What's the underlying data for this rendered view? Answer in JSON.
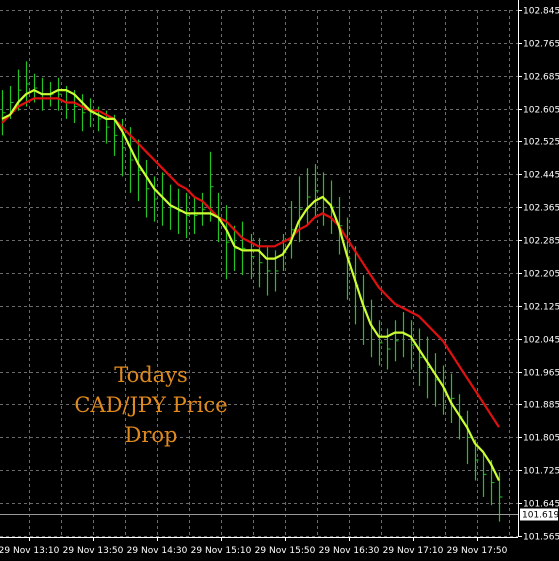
{
  "chart_data": {
    "type": "line",
    "title": "",
    "xlabel": "",
    "ylabel": "",
    "ylim": [
      101.565,
      102.885
    ],
    "y_ticks": [
      "102.845",
      "102.765",
      "102.685",
      "102.605",
      "102.525",
      "102.445",
      "102.365",
      "102.285",
      "102.205",
      "102.125",
      "102.045",
      "101.965",
      "101.885",
      "101.805",
      "101.725",
      "101.645",
      "101.565"
    ],
    "x_ticks": [
      "29 Nov 13:10",
      "29 Nov 13:50",
      "29 Nov 14:30",
      "29 Nov 15:10",
      "29 Nov 15:50",
      "29 Nov 16:30",
      "29 Nov 17:10",
      "29 Nov 17:50"
    ],
    "current_price": "101.619",
    "grid": true,
    "annotation": [
      "Todays",
      "CAD/JPY Price",
      "Drop"
    ],
    "colors": {
      "background": "#000000",
      "grid": "#6b6b6b",
      "bars": "#22c422",
      "fast_ma": "#ccff33",
      "slow_ma": "#e01010",
      "annotation": "#e08a1e",
      "axis_text": "#ffffff"
    },
    "series": [
      {
        "kind": "fast_ma",
        "values": [
          102.58,
          102.59,
          102.62,
          102.64,
          102.65,
          102.64,
          102.64,
          102.65,
          102.65,
          102.64,
          102.62,
          102.6,
          102.59,
          102.58,
          102.58,
          102.55,
          102.51,
          102.47,
          102.44,
          102.41,
          102.39,
          102.37,
          102.36,
          102.35,
          102.35,
          102.35,
          102.35,
          102.34,
          102.31,
          102.27,
          102.26,
          102.26,
          102.26,
          102.24,
          102.24,
          102.25,
          102.28,
          102.33,
          102.36,
          102.38,
          102.39,
          102.37,
          102.32,
          102.25,
          102.19,
          102.13,
          102.08,
          102.05,
          102.05,
          102.06,
          102.06,
          102.05,
          102.02,
          101.99,
          101.96,
          101.93,
          101.89,
          101.86,
          101.83,
          101.79,
          101.77,
          101.74,
          101.7
        ]
      },
      {
        "kind": "slow_ma",
        "values": [
          102.57,
          102.59,
          102.61,
          102.62,
          102.63,
          102.63,
          102.63,
          102.63,
          102.62,
          102.62,
          102.61,
          102.6,
          102.6,
          102.59,
          102.58,
          102.56,
          102.54,
          102.52,
          102.5,
          102.48,
          102.46,
          102.44,
          102.42,
          102.41,
          102.39,
          102.38,
          102.36,
          102.34,
          102.33,
          102.31,
          102.29,
          102.28,
          102.27,
          102.27,
          102.27,
          102.28,
          102.29,
          102.31,
          102.32,
          102.34,
          102.35,
          102.34,
          102.32,
          102.29,
          102.26,
          102.23,
          102.2,
          102.17,
          102.15,
          102.13,
          102.12,
          102.11,
          102.1,
          102.08,
          102.06,
          102.04,
          102.01,
          101.98,
          101.95,
          101.92,
          101.89,
          101.86,
          101.83
        ]
      }
    ],
    "bars": [
      [
        102.54,
        102.65
      ],
      [
        102.58,
        102.66
      ],
      [
        102.6,
        102.7
      ],
      [
        102.61,
        102.72
      ],
      [
        102.62,
        102.69
      ],
      [
        102.6,
        102.68
      ],
      [
        102.61,
        102.67
      ],
      [
        102.6,
        102.68
      ],
      [
        102.58,
        102.66
      ],
      [
        102.57,
        102.65
      ],
      [
        102.55,
        102.64
      ],
      [
        102.56,
        102.63
      ],
      [
        102.55,
        102.61
      ],
      [
        102.52,
        102.6
      ],
      [
        102.49,
        102.59
      ],
      [
        102.44,
        102.58
      ],
      [
        102.4,
        102.56
      ],
      [
        102.38,
        102.53
      ],
      [
        102.34,
        102.48
      ],
      [
        102.33,
        102.44
      ],
      [
        102.32,
        102.45
      ],
      [
        102.31,
        102.42
      ],
      [
        102.3,
        102.41
      ],
      [
        102.29,
        102.4
      ],
      [
        102.3,
        102.39
      ],
      [
        102.32,
        102.4
      ],
      [
        102.33,
        102.5
      ],
      [
        102.28,
        102.4
      ],
      [
        102.19,
        102.37
      ],
      [
        102.21,
        102.32
      ],
      [
        102.2,
        102.33
      ],
      [
        102.19,
        102.3
      ],
      [
        102.17,
        102.29
      ],
      [
        102.15,
        102.27
      ],
      [
        102.16,
        102.26
      ],
      [
        102.21,
        102.3
      ],
      [
        102.24,
        102.38
      ],
      [
        102.28,
        102.44
      ],
      [
        102.32,
        102.46
      ],
      [
        102.34,
        102.47
      ],
      [
        102.32,
        102.45
      ],
      [
        102.3,
        102.43
      ],
      [
        102.25,
        102.39
      ],
      [
        102.14,
        102.34
      ],
      [
        102.08,
        102.27
      ],
      [
        102.03,
        102.2
      ],
      [
        102.0,
        102.14
      ],
      [
        101.98,
        102.09
      ],
      [
        101.97,
        102.07
      ],
      [
        101.99,
        102.09
      ],
      [
        102.0,
        102.11
      ],
      [
        101.97,
        102.09
      ],
      [
        101.93,
        102.07
      ],
      [
        101.9,
        102.05
      ],
      [
        101.88,
        102.01
      ],
      [
        101.86,
        101.98
      ],
      [
        101.84,
        101.96
      ],
      [
        101.8,
        101.91
      ],
      [
        101.74,
        101.87
      ],
      [
        101.7,
        101.8
      ],
      [
        101.66,
        101.77
      ],
      [
        101.64,
        101.75
      ],
      [
        101.6,
        101.72
      ]
    ]
  }
}
